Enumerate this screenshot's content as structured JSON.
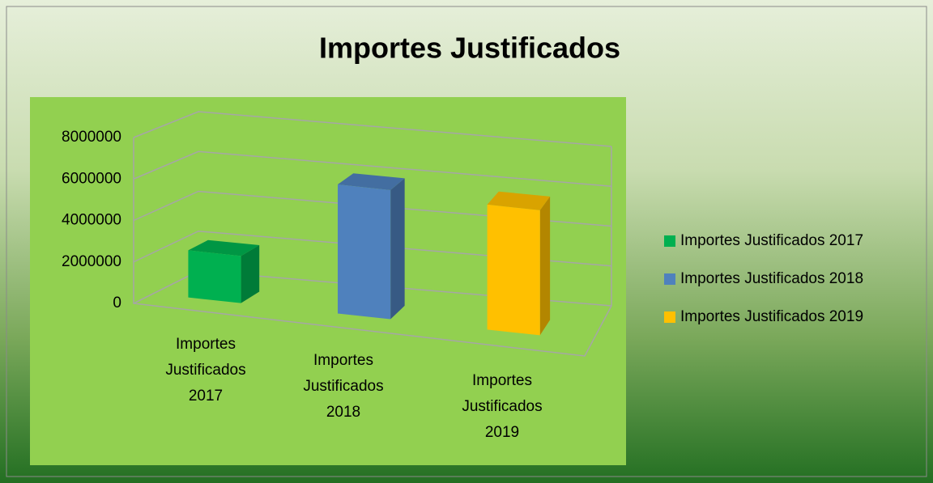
{
  "chart_data": {
    "type": "bar3d",
    "title": "Importes Justificados",
    "categories": [
      "Importes Justificados 2017",
      "Importes Justificados 2018",
      "Importes Justificados 2019"
    ],
    "values": [
      2300000,
      6300000,
      6100000
    ],
    "colors": [
      "#00b050",
      "#4f81bd",
      "#ffc000"
    ],
    "ylim": [
      0,
      8000000
    ],
    "yticks": [
      0,
      2000000,
      4000000,
      6000000,
      8000000
    ],
    "grid": true,
    "legend": "right"
  }
}
